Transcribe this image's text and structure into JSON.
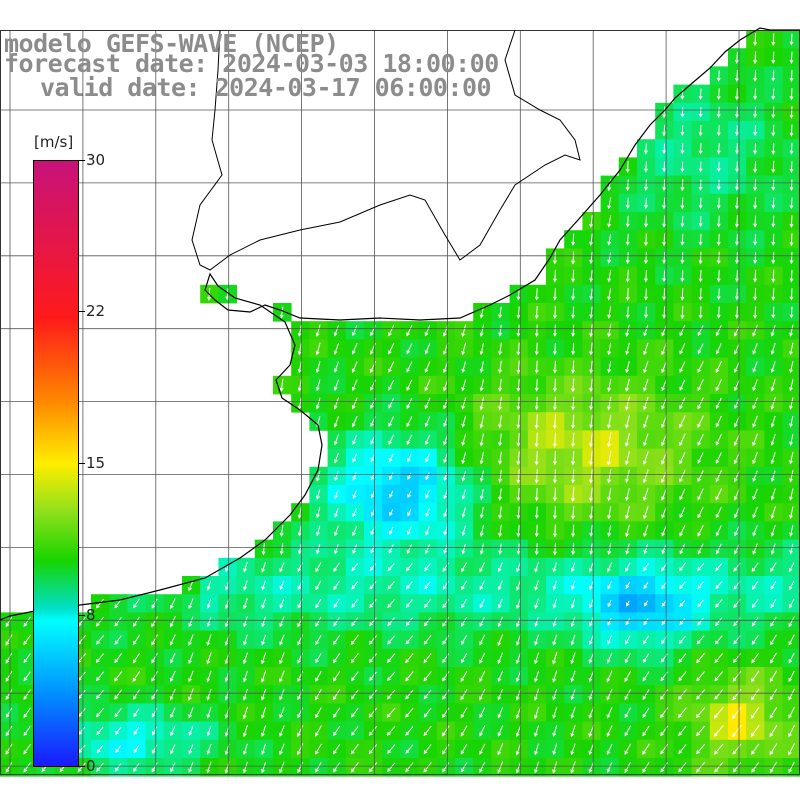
{
  "title": {
    "line1": "modelo GEFS-WAVE (NCEP)",
    "line2": "forecast date: 2024-03-03 18:00:00",
    "line3": "valid date: 2024-03-17 06:00:00"
  },
  "colorbar": {
    "unit": "[m/s]",
    "ticks": [
      "30",
      "22",
      "15",
      "8",
      "0"
    ],
    "tick_values": [
      30,
      22,
      15,
      8,
      0
    ],
    "colors": [
      "#1a1aff",
      "#0090ff",
      "#00ffff",
      "#18d400",
      "#8ee01a",
      "#ffee00",
      "#ff8a00",
      "#ff1a1a",
      "#c8127a"
    ]
  },
  "map": {
    "land_color": "#ffffff",
    "coast_color": "#000000",
    "grid_color": "#555555",
    "arrow_color": "#ffffff",
    "variable": "wind speed and direction",
    "scale": "field values fill 0–30 m/s; visible range roughly 5–15 m/s"
  }
}
